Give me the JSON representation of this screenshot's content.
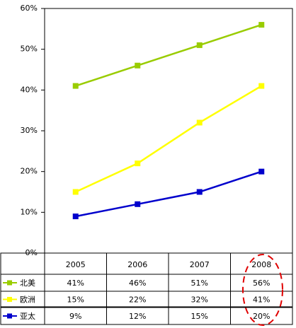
{
  "chart_data": {
    "type": "line",
    "categories": [
      "2005",
      "2006",
      "2007",
      "2008"
    ],
    "series": [
      {
        "name": "北美",
        "color": "#99cc00",
        "values": [
          41,
          46,
          51,
          56
        ],
        "value_labels": [
          "41%",
          "46%",
          "51%",
          "56%"
        ]
      },
      {
        "name": "欧洲",
        "color": "#ffff00",
        "values": [
          15,
          22,
          32,
          41
        ],
        "value_labels": [
          "15%",
          "22%",
          "32%",
          "41%"
        ]
      },
      {
        "name": "亚太",
        "color": "#0000cc",
        "values": [
          9,
          12,
          15,
          20
        ],
        "value_labels": [
          "9%",
          "12%",
          "15%",
          "20%"
        ]
      }
    ],
    "ylim": [
      0,
      60
    ],
    "yticks": [
      {
        "value": 0,
        "label": "0%"
      },
      {
        "value": 10,
        "label": "10%"
      },
      {
        "value": 20,
        "label": "20%"
      },
      {
        "value": 30,
        "label": "30%"
      },
      {
        "value": 40,
        "label": "40%"
      },
      {
        "value": 50,
        "label": "50%"
      },
      {
        "value": 60,
        "label": "60%"
      }
    ],
    "grid": false
  }
}
